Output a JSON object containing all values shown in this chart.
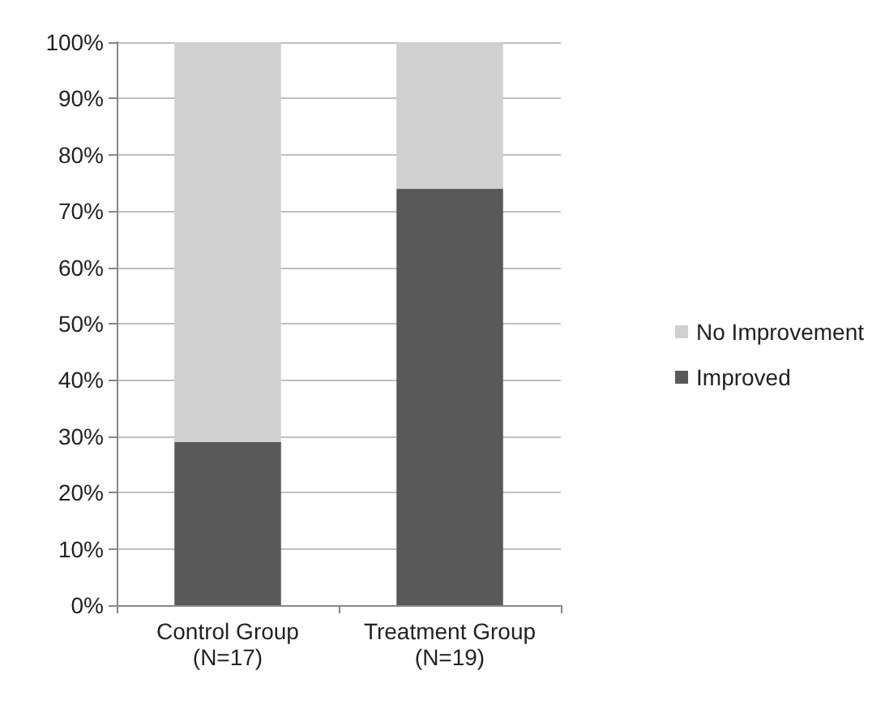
{
  "chart_data": {
    "type": "bar",
    "stacked": true,
    "categories": [
      "Control Group\n(N=17)",
      "Treatment Group\n(N=19)"
    ],
    "series": [
      {
        "name": "Improved",
        "color": "#595959",
        "values": [
          29,
          74
        ]
      },
      {
        "name": "No Improvement",
        "color": "#d0d0d0",
        "values": [
          71,
          26
        ]
      }
    ],
    "ylim": [
      0,
      100
    ],
    "yticks": [
      {
        "value": 0,
        "label": "0%"
      },
      {
        "value": 10,
        "label": "10%"
      },
      {
        "value": 20,
        "label": "20%"
      },
      {
        "value": 30,
        "label": "30%"
      },
      {
        "value": 40,
        "label": "40%"
      },
      {
        "value": 50,
        "label": "50%"
      },
      {
        "value": 60,
        "label": "60%"
      },
      {
        "value": 70,
        "label": "70%"
      },
      {
        "value": 80,
        "label": "80%"
      },
      {
        "value": 90,
        "label": "90%"
      },
      {
        "value": 100,
        "label": "100%"
      }
    ],
    "grid": "y",
    "legend": "right"
  }
}
